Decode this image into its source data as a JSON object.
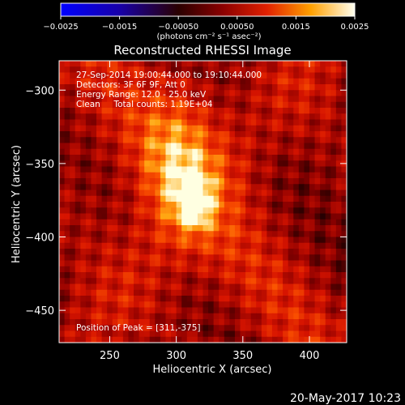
{
  "chart_data": {
    "type": "heatmap",
    "title": "Reconstructed RHESSI Image",
    "xlabel": "Heliocentric X (arcsec)",
    "ylabel": "Heliocentric Y (arcsec)",
    "xlim": [
      212,
      428
    ],
    "ylim": [
      -472,
      -280
    ],
    "x_ticks": [
      250,
      300,
      350,
      400
    ],
    "y_ticks": [
      -300,
      -350,
      -400,
      -450
    ],
    "colorbar": {
      "range": [
        -0.0025,
        0.0025
      ],
      "ticks": [
        -0.0025,
        -0.0015,
        -0.0005,
        0.0005,
        0.0015,
        0.0025
      ],
      "tick_labels": [
        "-0.0025",
        "-0.0015",
        "-0.00050",
        "0.00050",
        "0.0015",
        "0.0025"
      ],
      "units_label": "(photons cm⁻² s⁻¹ asec⁻²)"
    },
    "info_lines": [
      "27-Sep-2014 19:00:44.000 to 19:10:44.000",
      "Detectors: 3F 6F 9F, Att 0",
      "Energy Range: 12.0 - 25.0 keV",
      "Clean     Total counts: 1.19E+04"
    ],
    "peak_label": "Position of Peak = [311,-375]",
    "peak": [
      311,
      -375
    ],
    "timestamp": "20-May-2017 10:23"
  }
}
